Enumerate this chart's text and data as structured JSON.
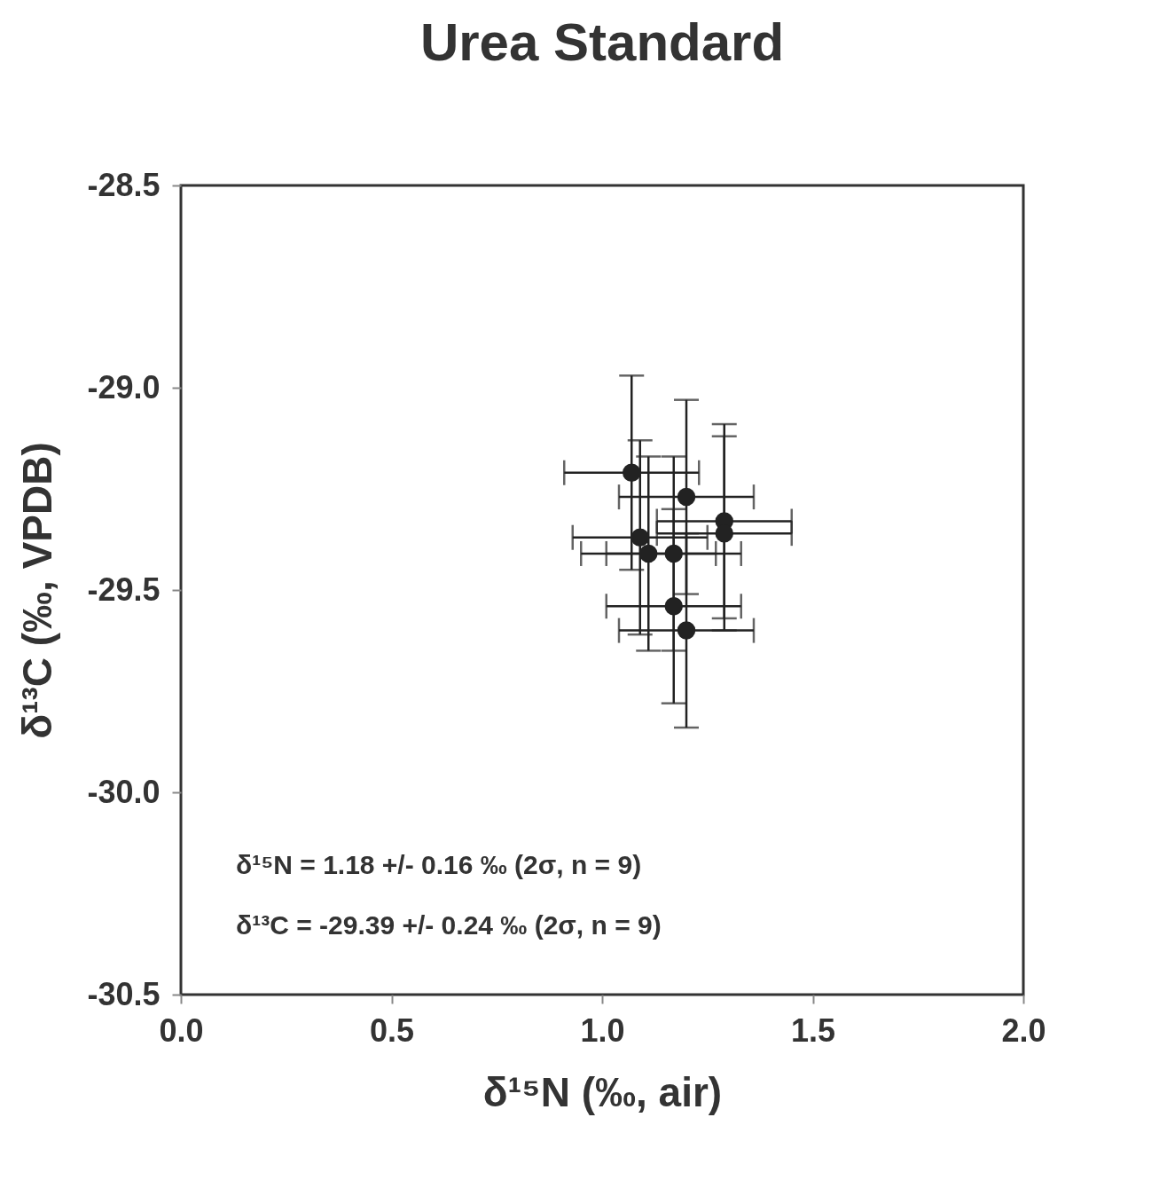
{
  "chart_data": {
    "type": "scatter",
    "title": "Urea Standard",
    "xlabel": "δ¹⁵N (‰, air)",
    "ylabel": "δ¹³C (‰, VPDB)",
    "x": [
      1.07,
      1.2,
      1.29,
      1.29,
      1.09,
      1.11,
      1.17,
      1.17,
      1.2
    ],
    "series": [
      {
        "color": "#222222",
        "values": [
          -29.21,
          -29.27,
          -29.33,
          -29.36,
          -29.37,
          -29.41,
          -29.41,
          -29.54,
          -29.6
        ],
        "errors": [
          0.24,
          0.24,
          0.24,
          0.24,
          0.24,
          0.24,
          0.24,
          0.24,
          0.24
        ],
        "xerrors": [
          0.16,
          0.16,
          0.16,
          0.16,
          0.16,
          0.16,
          0.16,
          0.16,
          0.16
        ]
      }
    ],
    "xlim": [
      0.0,
      2.0
    ],
    "ylim": [
      -30.5,
      -28.5
    ],
    "xticks": [
      {
        "value": 0,
        "label": "0.0"
      },
      0.5,
      {
        "value": 1,
        "label": "1.0"
      },
      1.5,
      {
        "value": 2,
        "label": "2.0"
      }
    ],
    "yticks": [
      -30.5,
      {
        "value": -30,
        "label": "-30.0"
      },
      -29.5,
      {
        "value": -29,
        "label": "-29.0"
      },
      -28.5
    ],
    "annotations": [
      "δ¹⁵N = 1.18 +/- 0.16 ‰ (2σ, n = 9)",
      "δ¹³C = -29.39 +/- 0.24 ‰ (2σ, n = 9)"
    ],
    "marker": "circle",
    "grid": false
  }
}
